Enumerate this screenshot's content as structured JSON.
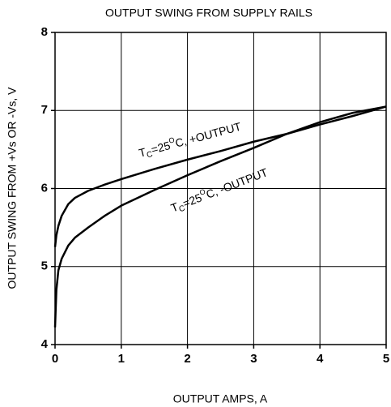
{
  "chart_data": {
    "type": "line",
    "title": "OUTPUT SWING FROM SUPPLY RAILS",
    "x_label": "OUTPUT AMPS, A",
    "y_label": "OUTPUT SWING FROM +Vs OR -Vs, V",
    "x": [
      0,
      0.02,
      0.05,
      0.1,
      0.2,
      0.3,
      0.5,
      0.75,
      1,
      1.5,
      2,
      2.5,
      3,
      3.5,
      4,
      4.5,
      5
    ],
    "series": [
      {
        "color": "#000000",
        "values": [
          5.25,
          5.4,
          5.52,
          5.65,
          5.8,
          5.88,
          5.97,
          6.05,
          6.12,
          6.25,
          6.37,
          6.48,
          6.6,
          6.7,
          6.82,
          6.93,
          7.05
        ]
      },
      {
        "color": "#000000",
        "values": [
          4.22,
          4.7,
          4.95,
          5.1,
          5.27,
          5.37,
          5.5,
          5.65,
          5.78,
          5.98,
          6.17,
          6.35,
          6.52,
          6.7,
          6.85,
          6.97,
          7.05
        ]
      }
    ],
    "annotations": [
      {
        "parts": [
          "T",
          "C",
          "=25",
          "O",
          "C, +OUTPUT"
        ]
      },
      {
        "parts": [
          "T",
          "C",
          "=25",
          "O",
          "C, -OUTPUT"
        ]
      }
    ],
    "xlim": [
      0,
      5
    ],
    "xticks": [
      0,
      1,
      2,
      3,
      4,
      5
    ],
    "ylim": [
      4,
      8
    ],
    "yticks": [
      4,
      5,
      6,
      7,
      8
    ],
    "grid": true
  }
}
